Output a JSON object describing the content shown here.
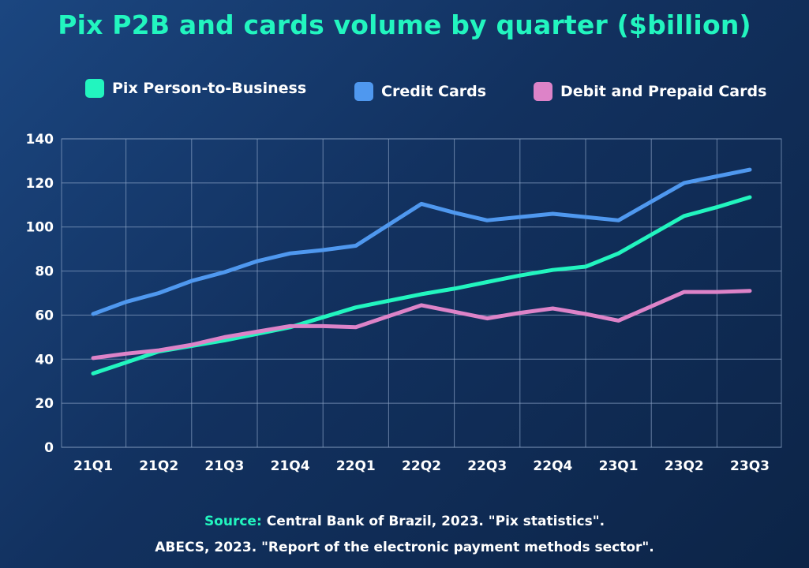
{
  "colors": {
    "background": "#12315f",
    "title": "#22f5bf",
    "pix": "#22f5bf",
    "credit": "#4f98ef",
    "debit": "#dd83c8",
    "grid": "#8aa2c4",
    "text": "#ffffff"
  },
  "chart_data": {
    "type": "line",
    "title": "Pix P2B and cards volume by quarter ($billion)",
    "xlabel": "",
    "ylabel": "",
    "ylim": [
      0,
      140
    ],
    "yticks": [
      0,
      20,
      40,
      60,
      80,
      100,
      120,
      140
    ],
    "grid": true,
    "legend_position": "top",
    "categories": [
      "21Q1",
      "21Q2",
      "21Q3",
      "21Q4",
      "22Q1",
      "22Q2",
      "22Q3",
      "22Q4",
      "23Q1",
      "23Q2",
      "23Q3"
    ],
    "x": [
      "21Q1",
      "21Q1.5",
      "21Q2",
      "21Q2.5",
      "21Q3",
      "21Q3.5",
      "21Q4",
      "21Q4.5",
      "22Q1",
      "22Q1.5",
      "22Q2",
      "22Q2.5",
      "22Q3",
      "22Q3.5",
      "22Q4",
      "22Q4.5",
      "23Q1",
      "23Q1.5",
      "23Q2",
      "23Q2.5",
      "23Q3"
    ],
    "series": [
      {
        "name": "Pix Person-to-Business",
        "color": "#22f5bf",
        "values": [
          33.5,
          38.5,
          43.5,
          46,
          48.5,
          51.5,
          54.5,
          59,
          63.5,
          66.5,
          69.5,
          72,
          75,
          78,
          80.5,
          82,
          88,
          96.5,
          105,
          109,
          113.5
        ]
      },
      {
        "name": "Credit Cards",
        "color": "#4f98ef",
        "values": [
          60.5,
          66,
          70,
          75.5,
          79.5,
          84.5,
          88,
          89.5,
          91.5,
          101,
          110.5,
          106.5,
          103,
          104.5,
          106,
          104.5,
          103,
          111.5,
          120,
          123,
          126
        ]
      },
      {
        "name": "Debit and Prepaid Cards",
        "color": "#dd83c8",
        "values": [
          40.5,
          42.5,
          44,
          46.5,
          50,
          52.5,
          55,
          55,
          54.5,
          59.5,
          64.5,
          61.5,
          58.5,
          61,
          63,
          60.5,
          57.5,
          64,
          70.5,
          70.5,
          71
        ]
      }
    ]
  },
  "source": {
    "label": "Source:",
    "line1": "Central Bank of Brazil, 2023. \"Pix statistics\".",
    "line2": "ABECS, 2023. \"Report of the electronic payment methods sector\"."
  }
}
